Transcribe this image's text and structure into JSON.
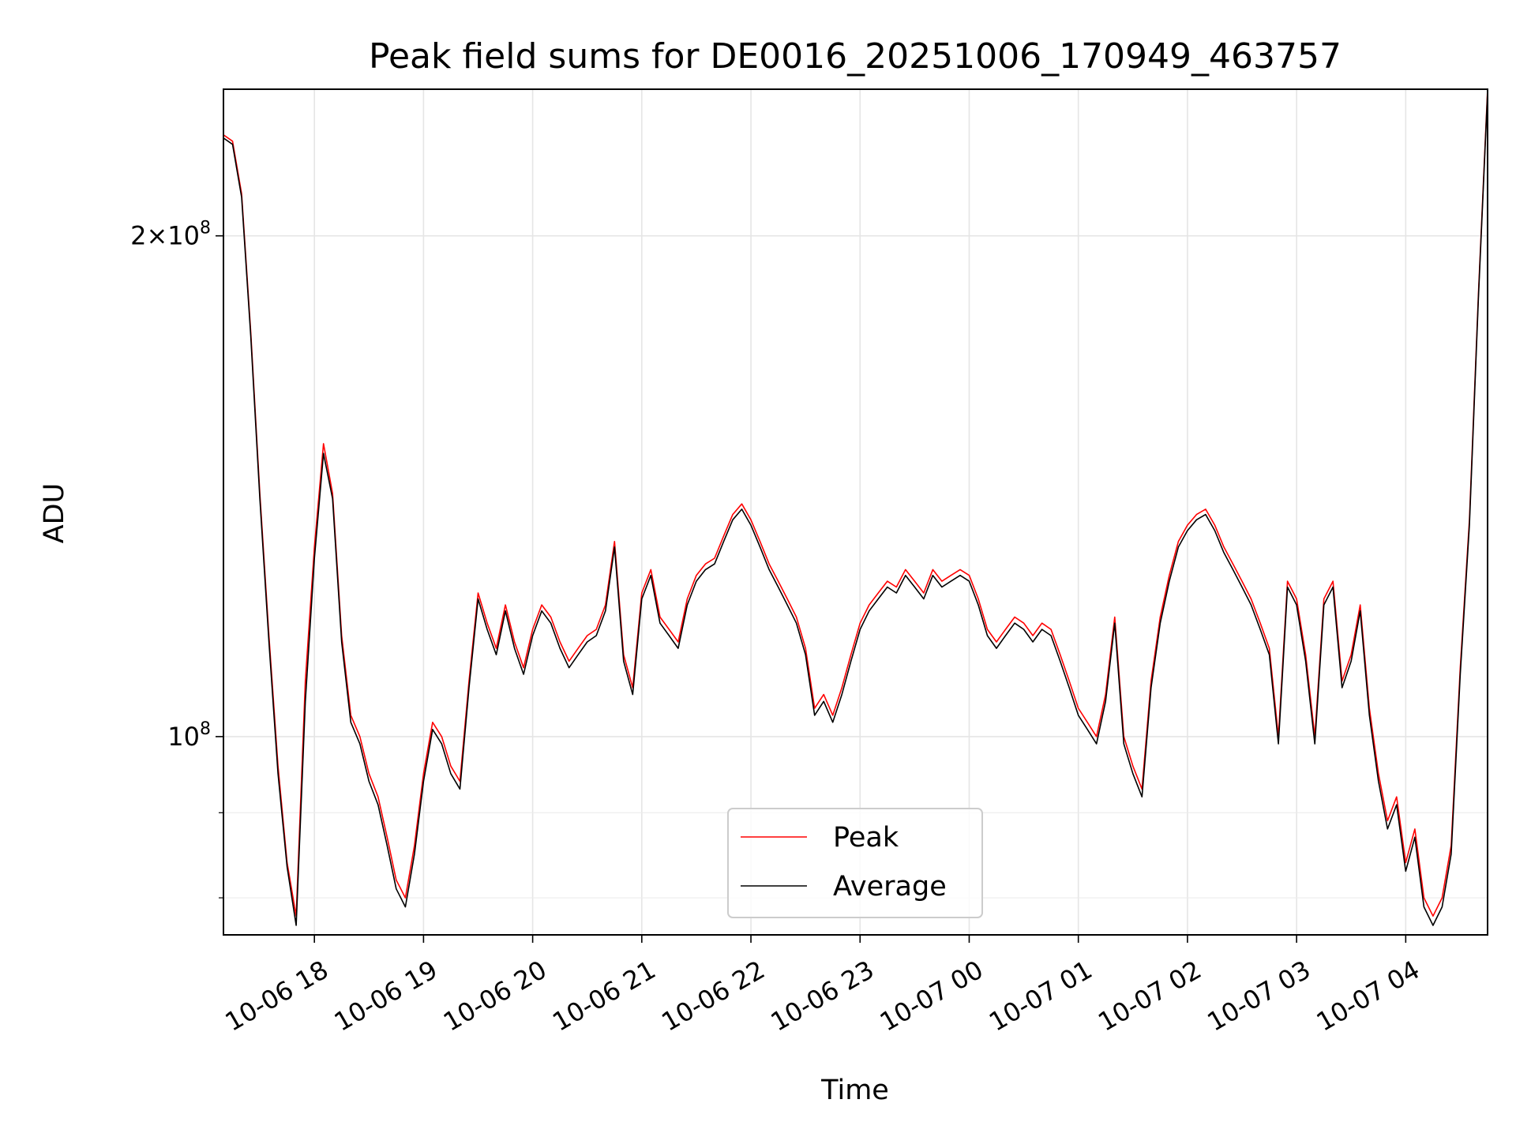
{
  "chart_data": {
    "type": "line",
    "title": "Peak field sums for DE0016_20251006_170949_463757",
    "xlabel": "Time",
    "ylabel": "ADU",
    "xlim": [
      "2025-10-06 17:10",
      "2025-10-07 04:45"
    ],
    "ylim": [
      76000000,
      245000000
    ],
    "yscale": "log",
    "grid": true,
    "legend": {
      "position": "bottom-center",
      "entries": [
        "Peak",
        "Average"
      ]
    },
    "colors": {
      "Peak": "#ff0000",
      "Average": "#000000"
    },
    "x_ticks": [
      "10-06 18",
      "10-06 19",
      "10-06 20",
      "10-06 21",
      "10-06 22",
      "10-06 23",
      "10-07 00",
      "10-07 01",
      "10-07 02",
      "10-07 03",
      "10-07 04"
    ],
    "y_ticks": [
      {
        "value": 100000000,
        "mantissa": "",
        "exponent": "8"
      },
      {
        "value": 200000000,
        "mantissa": "2",
        "exponent": "8"
      }
    ],
    "x": [
      "17:10",
      "17:15",
      "17:20",
      "17:25",
      "17:30",
      "17:35",
      "17:40",
      "17:45",
      "17:50",
      "17:55",
      "18:00",
      "18:05",
      "18:10",
      "18:15",
      "18:20",
      "18:25",
      "18:30",
      "18:35",
      "18:40",
      "18:45",
      "18:50",
      "18:55",
      "19:00",
      "19:05",
      "19:10",
      "19:15",
      "19:20",
      "19:25",
      "19:30",
      "19:35",
      "19:40",
      "19:45",
      "19:50",
      "19:55",
      "20:00",
      "20:05",
      "20:10",
      "20:15",
      "20:20",
      "20:25",
      "20:30",
      "20:35",
      "20:40",
      "20:45",
      "20:50",
      "20:55",
      "21:00",
      "21:05",
      "21:10",
      "21:15",
      "21:20",
      "21:25",
      "21:30",
      "21:35",
      "21:40",
      "21:45",
      "21:50",
      "21:55",
      "22:00",
      "22:05",
      "22:10",
      "22:15",
      "22:20",
      "22:25",
      "22:30",
      "22:35",
      "22:40",
      "22:45",
      "22:50",
      "22:55",
      "23:00",
      "23:05",
      "23:10",
      "23:15",
      "23:20",
      "23:25",
      "23:30",
      "23:35",
      "23:40",
      "23:45",
      "23:50",
      "23:55",
      "00:00",
      "00:05",
      "00:10",
      "00:15",
      "00:20",
      "00:25",
      "00:30",
      "00:35",
      "00:40",
      "00:45",
      "00:50",
      "00:55",
      "01:00",
      "01:05",
      "01:10",
      "01:15",
      "01:20",
      "01:25",
      "01:30",
      "01:35",
      "01:40",
      "01:45",
      "01:50",
      "01:55",
      "02:00",
      "02:05",
      "02:10",
      "02:15",
      "02:20",
      "02:25",
      "02:30",
      "02:35",
      "02:40",
      "02:45",
      "02:50",
      "02:55",
      "03:00",
      "03:05",
      "03:10",
      "03:15",
      "03:20",
      "03:25",
      "03:30",
      "03:35",
      "03:40",
      "03:45",
      "03:50",
      "03:55",
      "04:00",
      "04:05",
      "04:10",
      "04:15",
      "04:20",
      "04:25",
      "04:30",
      "04:35",
      "04:40",
      "04:45"
    ],
    "series": [
      {
        "name": "Peak",
        "values": [
          230000000,
          228000000,
          212000000,
          175000000,
          140000000,
          115000000,
          96000000,
          84000000,
          78000000,
          108000000,
          130000000,
          150000000,
          140000000,
          115000000,
          103000000,
          100000000,
          95000000,
          92000000,
          87000000,
          82000000,
          80000000,
          86000000,
          95000000,
          102000000,
          100000000,
          96000000,
          94000000,
          108000000,
          122000000,
          117000000,
          113000000,
          120000000,
          114000000,
          110000000,
          116000000,
          120000000,
          118000000,
          114000000,
          111000000,
          113000000,
          115000000,
          116000000,
          120000000,
          131000000,
          112000000,
          107000000,
          122000000,
          126000000,
          118000000,
          116000000,
          114000000,
          121000000,
          125000000,
          127000000,
          128000000,
          132000000,
          136000000,
          138000000,
          135000000,
          131000000,
          127000000,
          124000000,
          121000000,
          118000000,
          113000000,
          104000000,
          106000000,
          103000000,
          107000000,
          112000000,
          117000000,
          120000000,
          122000000,
          124000000,
          123000000,
          126000000,
          124000000,
          122000000,
          126000000,
          124000000,
          125000000,
          126000000,
          125000000,
          121000000,
          116000000,
          114000000,
          116000000,
          118000000,
          117000000,
          115000000,
          117000000,
          116000000,
          112000000,
          108000000,
          104000000,
          102000000,
          100000000,
          106000000,
          118000000,
          100000000,
          96000000,
          93000000,
          108000000,
          118000000,
          125000000,
          131000000,
          134000000,
          136000000,
          137000000,
          134000000,
          130000000,
          127000000,
          124000000,
          121000000,
          117000000,
          113000000,
          100000000,
          124000000,
          121000000,
          112000000,
          100000000,
          121000000,
          124000000,
          108000000,
          112000000,
          120000000,
          104000000,
          95000000,
          89000000,
          92000000,
          84000000,
          88000000,
          80000000,
          78000000,
          80000000,
          86000000,
          110000000,
          135000000,
          185000000,
          245000000
        ]
      },
      {
        "name": "Average",
        "values": [
          229000000,
          227000000,
          211000000,
          174000000,
          139000000,
          114000000,
          95000000,
          83500000,
          77000000,
          105000000,
          128000000,
          148000000,
          139000000,
          114000000,
          102000000,
          99000000,
          94000000,
          91000000,
          86000000,
          81000000,
          79000000,
          85000000,
          94000000,
          101000000,
          99000000,
          95000000,
          93000000,
          107000000,
          121000000,
          116000000,
          112000000,
          119000000,
          113000000,
          109000000,
          115000000,
          119000000,
          117000000,
          113000000,
          110000000,
          112000000,
          114000000,
          115000000,
          119000000,
          130000000,
          111000000,
          106000000,
          121000000,
          125000000,
          117000000,
          115000000,
          113000000,
          120000000,
          124000000,
          126000000,
          127000000,
          131000000,
          135000000,
          137000000,
          134000000,
          130000000,
          126000000,
          123000000,
          120000000,
          117000000,
          112000000,
          103000000,
          105000000,
          102000000,
          106000000,
          111000000,
          116000000,
          119000000,
          121000000,
          123000000,
          122000000,
          125000000,
          123000000,
          121000000,
          125000000,
          123000000,
          124000000,
          125000000,
          124000000,
          120000000,
          115000000,
          113000000,
          115000000,
          117000000,
          116000000,
          114000000,
          116000000,
          115000000,
          111000000,
          107000000,
          103000000,
          101000000,
          99000000,
          105000000,
          117000000,
          99000000,
          95000000,
          92000000,
          107000000,
          117000000,
          124000000,
          130000000,
          133000000,
          135000000,
          136000000,
          133000000,
          129000000,
          126000000,
          123000000,
          120000000,
          116000000,
          112000000,
          99000000,
          123000000,
          120000000,
          111000000,
          99000000,
          120000000,
          123000000,
          107000000,
          111000000,
          119000000,
          103000000,
          94000000,
          88000000,
          91000000,
          83000000,
          87000000,
          79000000,
          77000000,
          79000000,
          85000000,
          109000000,
          134000000,
          184000000,
          244000000
        ]
      }
    ]
  }
}
